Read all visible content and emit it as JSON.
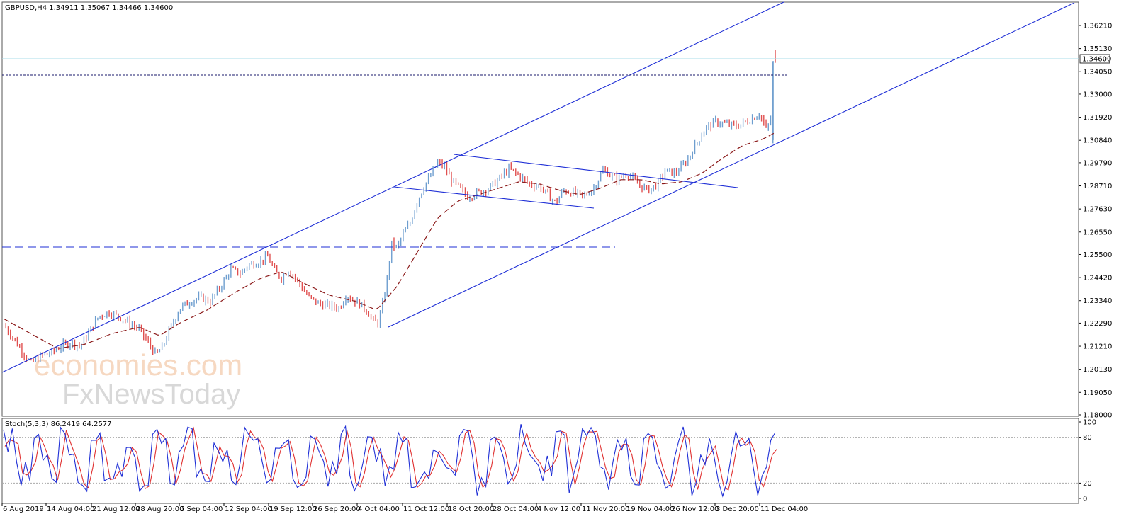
{
  "header": {
    "symbol_line": "GBPUSD,H4  1.34911 1.35067 1.34466 1.34600",
    "stoch_label": "Stoch(5,3,3) 86.2419 64.2577"
  },
  "watermark": {
    "line1": "economies.com",
    "line2": "FxNewsToday"
  },
  "colors": {
    "up_candle": "#6e9ecf",
    "down_candle": "#e05050",
    "ma": "#8b1a1a",
    "channel": "#1f2fd6",
    "stoch_main": "#1f2fd6",
    "stoch_signal": "#e03030",
    "bid_line": "#a8dcea"
  },
  "chart_data": [
    {
      "type": "candlestick",
      "symbol": "GBPUSD",
      "timeframe": "H4",
      "ohlc_last": {
        "open": 1.34911,
        "high": 1.35067,
        "low": 1.34466,
        "close": 1.346
      },
      "current_price_label": "1.34600",
      "current_price": 1.346,
      "y_ticks": [
        "1.36210",
        "1.35130",
        "1.34050",
        "1.33000",
        "1.31920",
        "1.30840",
        "1.29790",
        "1.28710",
        "1.27630",
        "1.26550",
        "1.25500",
        "1.24420",
        "1.23340",
        "1.22290",
        "1.21210",
        "1.20130",
        "1.19050",
        "1.18000"
      ],
      "ylim": [
        1.18,
        1.3675
      ],
      "x_ticks": [
        "6 Aug 2019",
        "14 Aug 04:00",
        "21 Aug 12:00",
        "28 Aug 20:00",
        "5 Sep 04:00",
        "12 Sep 04:00",
        "19 Sep 12:00",
        "26 Sep 20:00",
        "4 Oct 04:00",
        "11 Oct 12:00",
        "18 Oct 20:00",
        "28 Oct 04:00",
        "4 Nov 12:00",
        "11 Nov 20:00",
        "19 Nov 04:00",
        "26 Nov 12:00",
        "3 Dec 20:00",
        "11 Dec 04:00"
      ],
      "close_path": [
        [
          0,
          1.222
        ],
        [
          0.012,
          1.217
        ],
        [
          0.025,
          1.211
        ],
        [
          0.04,
          1.204
        ],
        [
          0.055,
          1.2075
        ],
        [
          0.07,
          1.209
        ],
        [
          0.085,
          1.212
        ],
        [
          0.1,
          1.214
        ],
        [
          0.113,
          1.212
        ],
        [
          0.125,
          1.218
        ],
        [
          0.14,
          1.226
        ],
        [
          0.155,
          1.228
        ],
        [
          0.17,
          1.226
        ],
        [
          0.185,
          1.223
        ],
        [
          0.2,
          1.22
        ],
        [
          0.215,
          1.213
        ],
        [
          0.225,
          1.208
        ],
        [
          0.235,
          1.212
        ],
        [
          0.245,
          1.22
        ],
        [
          0.26,
          1.23
        ],
        [
          0.275,
          1.233
        ],
        [
          0.29,
          1.235
        ],
        [
          0.305,
          1.233
        ],
        [
          0.32,
          1.24
        ],
        [
          0.335,
          1.248
        ],
        [
          0.35,
          1.246
        ],
        [
          0.36,
          1.25
        ],
        [
          0.37,
          1.251
        ],
        [
          0.38,
          1.252
        ],
        [
          0.39,
          1.254
        ],
        [
          0.4,
          1.247
        ],
        [
          0.41,
          1.244
        ],
        [
          0.42,
          1.248
        ],
        [
          0.435,
          1.242
        ],
        [
          0.45,
          1.235
        ],
        [
          0.465,
          1.232
        ],
        [
          0.48,
          1.231
        ],
        [
          0.495,
          1.23
        ],
        [
          0.505,
          1.236
        ],
        [
          0.515,
          1.234
        ],
        [
          0.525,
          1.232
        ],
        [
          0.535,
          1.229
        ],
        [
          0.545,
          1.224
        ],
        [
          0.552,
          1.223
        ],
        [
          0.558,
          1.23
        ],
        [
          0.565,
          1.242
        ],
        [
          0.572,
          1.26
        ],
        [
          0.58,
          1.258
        ],
        [
          0.59,
          1.265
        ],
        [
          0.6,
          1.27
        ],
        [
          0.61,
          1.28
        ],
        [
          0.62,
          1.287
        ],
        [
          0.63,
          1.292
        ],
        [
          0.64,
          1.298
        ],
        [
          0.65,
          1.296
        ],
        [
          0.66,
          1.29
        ],
        [
          0.672,
          1.286
        ],
        [
          0.685,
          1.282
        ],
        [
          0.7,
          1.284
        ],
        [
          0.715,
          1.286
        ],
        [
          0.73,
          1.29
        ],
        [
          0.745,
          1.295
        ],
        [
          0.76,
          1.292
        ],
        [
          0.775,
          1.288
        ],
        [
          0.79,
          1.287
        ],
        [
          0.805,
          1.282
        ],
        [
          0.815,
          1.279
        ],
        [
          0.825,
          1.285
        ],
        [
          0.84,
          1.284
        ],
        [
          0.855,
          1.282
        ],
        [
          0.87,
          1.286
        ],
        [
          0.885,
          1.295
        ],
        [
          0.895,
          1.292
        ],
        [
          0.905,
          1.29
        ],
        [
          0.92,
          1.293
        ],
        [
          0.935,
          1.288
        ],
        [
          0.95,
          1.285
        ],
        [
          0.965,
          1.288
        ],
        [
          0.975,
          1.294
        ],
        [
          0.99,
          1.293
        ],
        [
          1.0,
          1.296
        ],
        [
          1.01,
          1.3
        ],
        [
          1.02,
          1.306
        ],
        [
          1.035,
          1.314
        ],
        [
          1.05,
          1.317
        ],
        [
          1.065,
          1.316
        ],
        [
          1.08,
          1.315
        ],
        [
          1.095,
          1.317
        ],
        [
          1.105,
          1.319
        ],
        [
          1.115,
          1.321
        ],
        [
          1.125,
          1.313
        ],
        [
          1.132,
          1.319
        ],
        [
          1.138,
          1.346
        ]
      ],
      "ma_path": [
        [
          0,
          1.225
        ],
        [
          0.04,
          1.218
        ],
        [
          0.08,
          1.211
        ],
        [
          0.12,
          1.213
        ],
        [
          0.16,
          1.218
        ],
        [
          0.2,
          1.221
        ],
        [
          0.23,
          1.217
        ],
        [
          0.26,
          1.223
        ],
        [
          0.3,
          1.229
        ],
        [
          0.34,
          1.237
        ],
        [
          0.38,
          1.244
        ],
        [
          0.41,
          1.247
        ],
        [
          0.44,
          1.242
        ],
        [
          0.48,
          1.236
        ],
        [
          0.52,
          1.233
        ],
        [
          0.55,
          1.229
        ],
        [
          0.58,
          1.24
        ],
        [
          0.61,
          1.256
        ],
        [
          0.64,
          1.272
        ],
        [
          0.67,
          1.28
        ],
        [
          0.7,
          1.283
        ],
        [
          0.73,
          1.286
        ],
        [
          0.76,
          1.289
        ],
        [
          0.79,
          1.288
        ],
        [
          0.82,
          1.285
        ],
        [
          0.85,
          1.283
        ],
        [
          0.88,
          1.286
        ],
        [
          0.91,
          1.29
        ],
        [
          0.94,
          1.29
        ],
        [
          0.97,
          1.288
        ],
        [
          1.0,
          1.289
        ],
        [
          1.03,
          1.293
        ],
        [
          1.06,
          1.3
        ],
        [
          1.09,
          1.306
        ],
        [
          1.12,
          1.309
        ],
        [
          1.138,
          1.312
        ]
      ]
    },
    {
      "type": "line",
      "name": "Stoch(5,3,3)",
      "main_value": 86.2419,
      "signal_value": 64.2577,
      "ylim": [
        0,
        100
      ],
      "y_ticks": [
        "100",
        "80",
        "20",
        "0"
      ],
      "levels": [
        80,
        20
      ]
    }
  ]
}
